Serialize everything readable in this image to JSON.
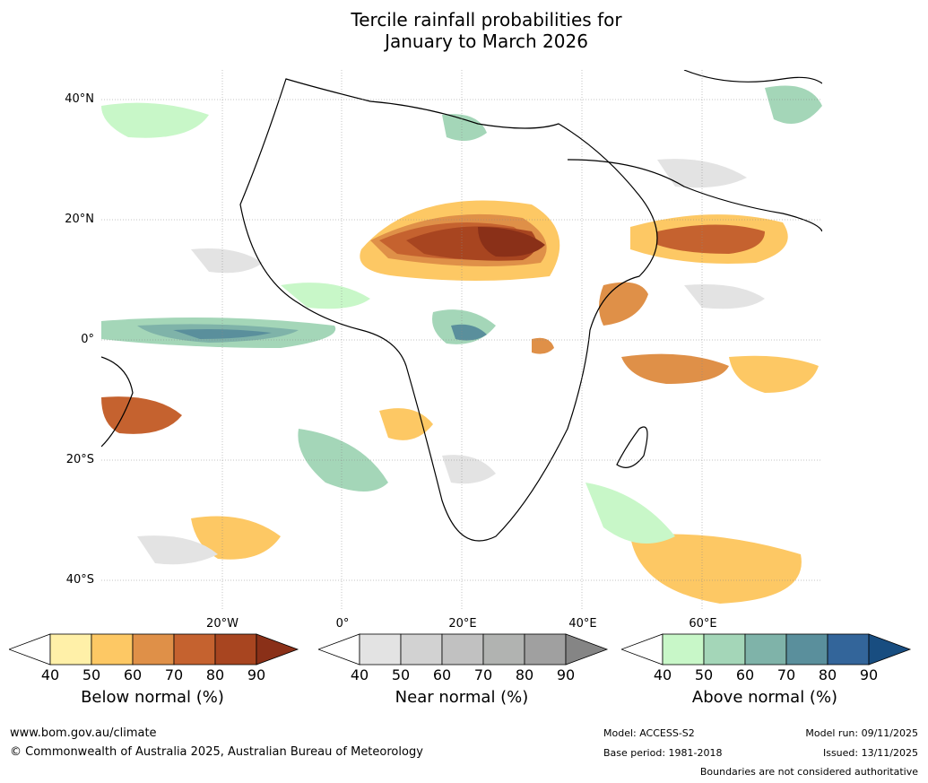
{
  "title": {
    "line1": "Tercile rainfall probabilities for",
    "line2": "January to March 2026"
  },
  "map": {
    "latitudes": [
      "40°N",
      "20°N",
      "0°",
      "20°S",
      "40°S"
    ],
    "longitudes": [
      "20°W",
      "0°",
      "20°E",
      "40°E",
      "60°E"
    ]
  },
  "legends": [
    {
      "caption": "Below normal (%)",
      "ticks": [
        "40",
        "50",
        "60",
        "70",
        "80",
        "90"
      ],
      "colors": [
        "#fff0a8",
        "#fdc864",
        "#df9048",
        "#c5622f",
        "#a84520",
        "#8a3018"
      ]
    },
    {
      "caption": "Near normal (%)",
      "ticks": [
        "40",
        "50",
        "60",
        "70",
        "80",
        "90"
      ],
      "colors": [
        "#e3e3e3",
        "#d2d2d2",
        "#c1c1c1",
        "#b1b3b1",
        "#a0a0a0",
        "#858585"
      ]
    },
    {
      "caption": "Above normal (%)",
      "ticks": [
        "40",
        "50",
        "60",
        "70",
        "80",
        "90"
      ],
      "colors": [
        "#c8f7c8",
        "#a4d6b8",
        "#7fb3a9",
        "#5a8f9c",
        "#33659a",
        "#184d80"
      ]
    }
  ],
  "footer": {
    "website": "www.bom.gov.au/climate",
    "copyright": "© Commonwealth of Australia 2025, Australian Bureau of Meteorology",
    "model": "Model: ACCESS-S2",
    "base_period": "Base period: 1981-2018",
    "model_run": "Model run: 09/11/2025",
    "issued": "Issued: 13/11/2025",
    "disclaimer": "Boundaries are not considered authoritative"
  }
}
